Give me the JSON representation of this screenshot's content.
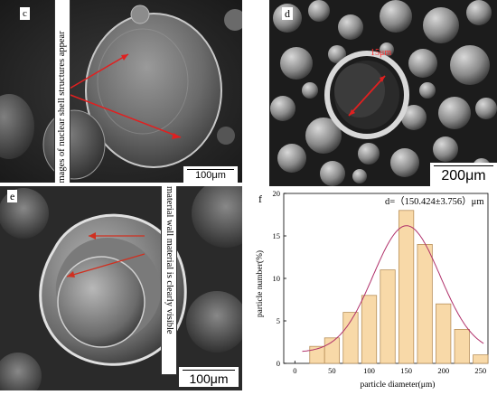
{
  "panels": {
    "c": {
      "label": "c",
      "scale_text": "100μm",
      "callout": "Images of nuclear shell structures appear"
    },
    "d": {
      "label": "d",
      "scale_text": "200μm",
      "measure_text": "15μm"
    },
    "e": {
      "label": "e",
      "scale_text": "100μm",
      "callout": "Core material wall material is clearly visible"
    },
    "f": {
      "label": "f",
      "annotation": "d=（150.424±3.756）μm"
    }
  },
  "colors": {
    "arrow": "#e02020",
    "bar_fill": "#f8d9a8",
    "bar_edge": "#b8905a",
    "fit_curve": "#b0306a"
  },
  "chart_data": {
    "type": "bar",
    "xlabel": "particle diameter(μm)",
    "ylabel": "particle number(%)",
    "xlim": [
      -15,
      260
    ],
    "ylim": [
      0,
      20
    ],
    "xticks": [
      "0",
      "50",
      "100",
      "150",
      "200",
      "250"
    ],
    "yticks": [
      "0",
      "5",
      "10",
      "15",
      "20"
    ],
    "bin_width": 20,
    "x": [
      30,
      50,
      75,
      100,
      125,
      150,
      175,
      200,
      225,
      250
    ],
    "values": [
      2,
      3,
      6,
      8,
      11,
      18,
      14,
      7,
      4,
      1
    ],
    "fit": {
      "type": "gaussian",
      "mean": 150.424,
      "sigma": 45,
      "peak": 16.2,
      "baseline": 1.3
    }
  }
}
